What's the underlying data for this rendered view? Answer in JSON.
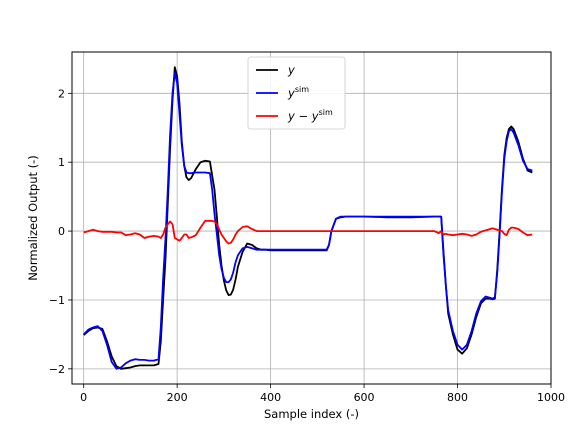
{
  "chart_data": {
    "type": "line",
    "title": "",
    "xlabel": "Sample index (-)",
    "ylabel": "Normalized Output (-)",
    "xlim": [
      -25,
      1000
    ],
    "ylim": [
      -2.22,
      2.6
    ],
    "xticks": [
      0,
      200,
      400,
      600,
      800,
      1000
    ],
    "yticks": [
      -2,
      -1,
      0,
      1,
      2
    ],
    "xtick_labels": [
      "0",
      "200",
      "400",
      "600",
      "800",
      "1000"
    ],
    "ytick_labels": [
      "−2",
      "−1",
      "0",
      "1",
      "2"
    ],
    "grid": true,
    "legend_position": "top-center",
    "series": [
      {
        "name": "y",
        "legend_base": "y",
        "legend_sup": "",
        "color": "#000000",
        "x": [
          0,
          10,
          20,
          30,
          40,
          50,
          60,
          70,
          80,
          90,
          100,
          110,
          120,
          130,
          140,
          150,
          160,
          165,
          170,
          175,
          180,
          185,
          190,
          195,
          200,
          205,
          210,
          215,
          220,
          225,
          230,
          240,
          250,
          260,
          270,
          280,
          285,
          290,
          295,
          300,
          305,
          310,
          315,
          320,
          325,
          330,
          340,
          350,
          360,
          370,
          380,
          390,
          400,
          450,
          500,
          510,
          520,
          525,
          530,
          540,
          550,
          560,
          600,
          650,
          700,
          750,
          760,
          765,
          770,
          775,
          780,
          790,
          800,
          810,
          820,
          830,
          840,
          850,
          860,
          870,
          875,
          880,
          885,
          890,
          895,
          900,
          905,
          910,
          915,
          920,
          930,
          940,
          950,
          960
        ],
        "y": [
          -1.51,
          -1.45,
          -1.41,
          -1.4,
          -1.42,
          -1.6,
          -1.82,
          -1.96,
          -2.0,
          -1.99,
          -1.98,
          -1.96,
          -1.95,
          -1.95,
          -1.95,
          -1.95,
          -1.93,
          -1.6,
          -1.0,
          -0.4,
          0.4,
          1.2,
          1.9,
          2.38,
          2.25,
          1.85,
          1.3,
          0.95,
          0.78,
          0.74,
          0.77,
          0.9,
          1.0,
          1.02,
          1.01,
          0.6,
          0.2,
          -0.2,
          -0.5,
          -0.72,
          -0.86,
          -0.93,
          -0.92,
          -0.85,
          -0.7,
          -0.52,
          -0.3,
          -0.18,
          -0.2,
          -0.25,
          -0.27,
          -0.27,
          -0.28,
          -0.28,
          -0.28,
          -0.28,
          -0.28,
          -0.2,
          0.0,
          0.18,
          0.2,
          0.21,
          0.21,
          0.2,
          0.2,
          0.21,
          0.21,
          0.21,
          -0.3,
          -0.8,
          -1.2,
          -1.5,
          -1.72,
          -1.78,
          -1.7,
          -1.5,
          -1.25,
          -1.05,
          -0.98,
          -0.98,
          -0.99,
          -0.98,
          -0.55,
          0.0,
          0.6,
          1.1,
          1.35,
          1.48,
          1.52,
          1.48,
          1.3,
          1.05,
          0.88,
          0.85
        ]
      },
      {
        "name": "y_sim",
        "legend_base": "y",
        "legend_sup": "sim",
        "color": "#0000ff",
        "x": [
          0,
          10,
          20,
          30,
          40,
          50,
          60,
          70,
          80,
          90,
          100,
          110,
          120,
          130,
          140,
          150,
          160,
          165,
          170,
          175,
          180,
          185,
          190,
          195,
          200,
          205,
          210,
          215,
          220,
          225,
          230,
          240,
          250,
          260,
          270,
          275,
          280,
          285,
          290,
          295,
          300,
          305,
          310,
          315,
          320,
          325,
          330,
          340,
          350,
          360,
          370,
          380,
          390,
          400,
          450,
          500,
          510,
          520,
          525,
          530,
          540,
          550,
          560,
          600,
          650,
          700,
          750,
          760,
          765,
          770,
          775,
          780,
          790,
          800,
          810,
          820,
          830,
          840,
          850,
          860,
          870,
          875,
          880,
          885,
          890,
          895,
          900,
          905,
          910,
          915,
          920,
          930,
          940,
          950,
          960
        ],
        "y": [
          -1.5,
          -1.43,
          -1.4,
          -1.38,
          -1.45,
          -1.65,
          -1.9,
          -2.0,
          -1.98,
          -1.92,
          -1.88,
          -1.86,
          -1.87,
          -1.87,
          -1.88,
          -1.88,
          -1.86,
          -1.4,
          -0.7,
          -0.1,
          0.6,
          1.4,
          2.0,
          2.3,
          2.15,
          1.7,
          1.25,
          0.95,
          0.85,
          0.84,
          0.84,
          0.85,
          0.85,
          0.85,
          0.84,
          0.6,
          0.25,
          -0.05,
          -0.35,
          -0.55,
          -0.68,
          -0.74,
          -0.74,
          -0.7,
          -0.6,
          -0.45,
          -0.35,
          -0.25,
          -0.23,
          -0.25,
          -0.27,
          -0.27,
          -0.27,
          -0.27,
          -0.27,
          -0.27,
          -0.27,
          -0.27,
          -0.2,
          0.0,
          0.18,
          0.21,
          0.21,
          0.21,
          0.21,
          0.21,
          0.21,
          0.21,
          0.21,
          -0.35,
          -0.8,
          -1.15,
          -1.45,
          -1.65,
          -1.72,
          -1.65,
          -1.45,
          -1.2,
          -1.02,
          -0.95,
          -0.97,
          -0.98,
          -0.96,
          -0.6,
          -0.05,
          0.55,
          1.05,
          1.3,
          1.45,
          1.48,
          1.43,
          1.25,
          1.02,
          0.9,
          0.88
        ]
      },
      {
        "name": "y - y_sim",
        "legend_base": "y − y",
        "legend_sup": "sim",
        "color": "#ff0000",
        "x": [
          0,
          10,
          20,
          30,
          40,
          50,
          60,
          70,
          80,
          90,
          100,
          110,
          120,
          130,
          140,
          150,
          160,
          165,
          170,
          175,
          180,
          185,
          190,
          195,
          200,
          205,
          210,
          215,
          220,
          225,
          230,
          240,
          250,
          260,
          270,
          280,
          285,
          290,
          295,
          300,
          305,
          310,
          315,
          320,
          325,
          330,
          340,
          350,
          360,
          370,
          380,
          390,
          400,
          450,
          500,
          510,
          520,
          525,
          530,
          540,
          550,
          560,
          600,
          650,
          700,
          750,
          760,
          765,
          770,
          775,
          780,
          790,
          800,
          810,
          820,
          830,
          840,
          850,
          860,
          870,
          875,
          880,
          885,
          890,
          895,
          900,
          905,
          910,
          915,
          920,
          930,
          940,
          950,
          960
        ],
        "y": [
          -0.02,
          0.0,
          0.02,
          0.0,
          -0.01,
          -0.01,
          -0.01,
          -0.02,
          -0.02,
          -0.06,
          -0.05,
          -0.03,
          -0.05,
          -0.1,
          -0.08,
          -0.07,
          -0.08,
          -0.1,
          -0.05,
          0.05,
          0.1,
          0.14,
          0.1,
          -0.1,
          -0.12,
          -0.14,
          -0.1,
          -0.05,
          -0.05,
          -0.1,
          -0.09,
          -0.06,
          0.05,
          0.15,
          0.15,
          0.14,
          0.1,
          0.02,
          -0.05,
          -0.1,
          -0.15,
          -0.18,
          -0.17,
          -0.12,
          -0.05,
          0.0,
          0.06,
          0.07,
          0.03,
          0.0,
          0.0,
          0.0,
          0.0,
          0.0,
          0.0,
          0.0,
          0.0,
          0.0,
          0.0,
          0.0,
          0.0,
          0.0,
          0.0,
          0.0,
          0.0,
          0.0,
          -0.03,
          0.0,
          -0.05,
          -0.04,
          -0.05,
          -0.06,
          -0.05,
          -0.04,
          -0.05,
          -0.07,
          -0.05,
          -0.01,
          0.01,
          0.03,
          0.04,
          0.03,
          0.02,
          0.01,
          0.0,
          -0.04,
          -0.06,
          0.02,
          0.05,
          0.05,
          0.03,
          -0.02,
          -0.06,
          -0.05
        ]
      }
    ]
  }
}
